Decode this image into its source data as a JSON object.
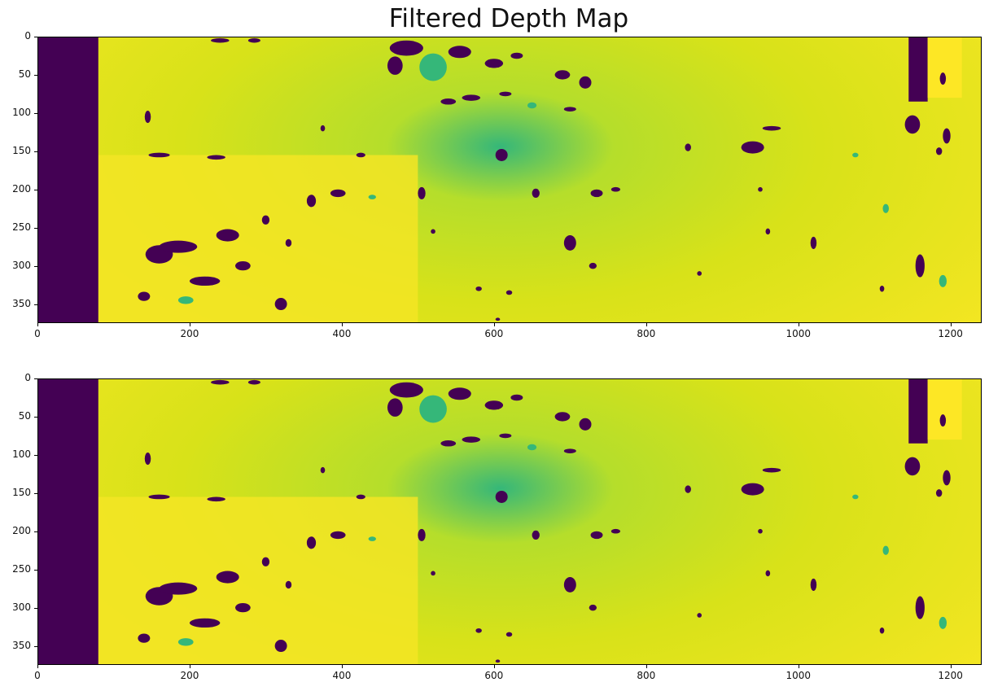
{
  "chart_data": [
    {
      "type": "heatmap",
      "title": "Filtered Depth Map",
      "xlabel": "",
      "ylabel": "",
      "xlim": [
        0,
        1241
      ],
      "ylim": [
        375,
        0
      ],
      "x_ticks": [
        "0",
        "200",
        "400",
        "600",
        "800",
        "1000",
        "1200"
      ],
      "y_ticks": [
        "0",
        "50",
        "100",
        "150",
        "200",
        "250",
        "300",
        "350"
      ],
      "colormap": "viridis",
      "colors": {
        "invalid": "#440154",
        "far": "#fde725",
        "mid": "#b5de2b",
        "near": "#35b779"
      },
      "invalid_regions": [
        {
          "x0": 0,
          "x1": 80,
          "y0": 0,
          "y1": 375
        },
        {
          "x0": 1145,
          "x1": 1170,
          "y0": 0,
          "y1": 85
        }
      ]
    },
    {
      "type": "heatmap",
      "title": "",
      "xlabel": "",
      "ylabel": "",
      "xlim": [
        0,
        1241
      ],
      "ylim": [
        375,
        0
      ],
      "x_ticks": [
        "0",
        "200",
        "400",
        "600",
        "800",
        "1000",
        "1200"
      ],
      "y_ticks": [
        "0",
        "50",
        "100",
        "150",
        "200",
        "250",
        "300",
        "350"
      ],
      "colormap": "viridis",
      "colors": {
        "invalid": "#440154",
        "far": "#fde725",
        "mid": "#b5de2b",
        "near": "#35b779"
      },
      "invalid_regions": [
        {
          "x0": 0,
          "x1": 80,
          "y0": 0,
          "y1": 375
        },
        {
          "x0": 1145,
          "x1": 1170,
          "y0": 0,
          "y1": 85
        }
      ]
    }
  ]
}
